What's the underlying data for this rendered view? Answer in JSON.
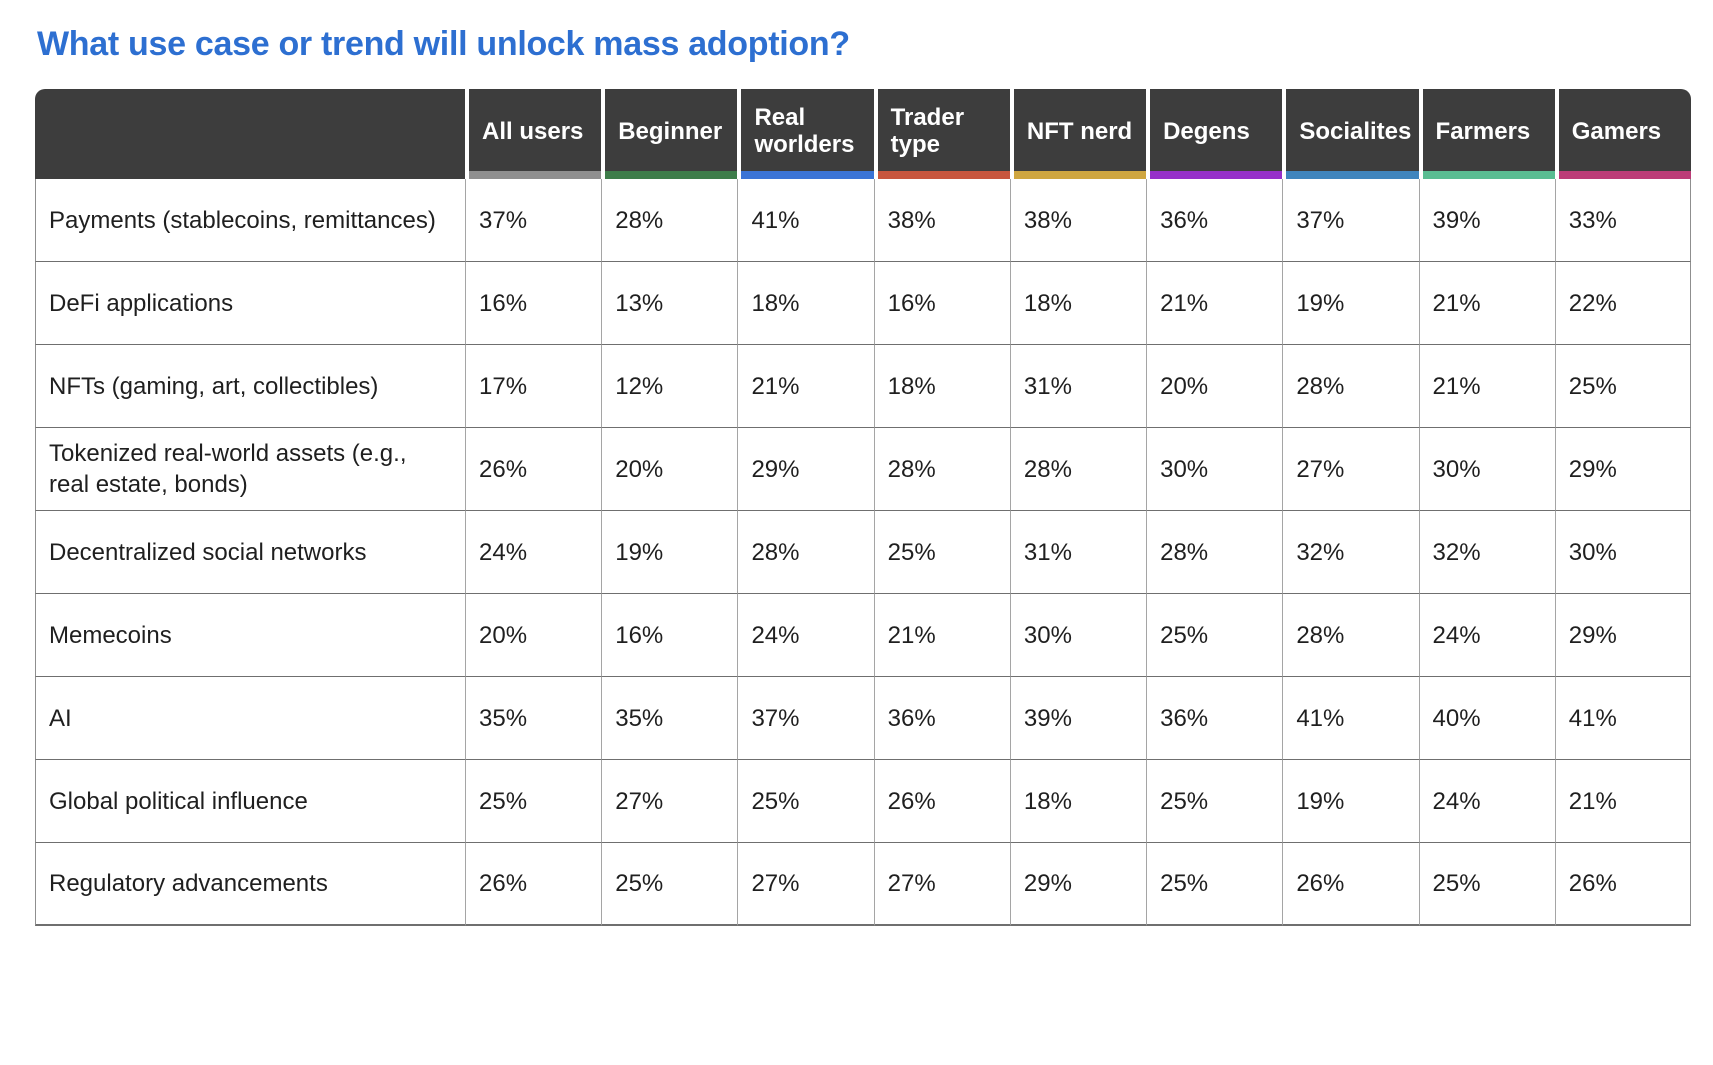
{
  "title": "What use case or trend will unlock mass adoption?",
  "theme": {
    "title_color": "#2d6fd1",
    "header_bg": "#3d3d3d",
    "header_text": "#ffffff"
  },
  "chart_data": {
    "type": "table",
    "title": "What use case or trend will unlock mass adoption?",
    "columns": [
      {
        "label": "All users",
        "color": "#8f8f8f"
      },
      {
        "label": "Beginner",
        "color": "#3e7d4a"
      },
      {
        "label": "Real worlders",
        "color": "#3b74d6"
      },
      {
        "label": "Trader type",
        "color": "#c8563e"
      },
      {
        "label": "NFT nerd",
        "color": "#cfa640"
      },
      {
        "label": "Degens",
        "color": "#9630c9"
      },
      {
        "label": "Socialites",
        "color": "#4085bd"
      },
      {
        "label": "Farmers",
        "color": "#5abd92"
      },
      {
        "label": "Gamers",
        "color": "#bc3c77"
      }
    ],
    "rows": [
      {
        "label": "Payments (stablecoins, remittances)",
        "values": [
          "37%",
          "28%",
          "41%",
          "38%",
          "38%",
          "36%",
          "37%",
          "39%",
          "33%"
        ]
      },
      {
        "label": "DeFi applications",
        "values": [
          "16%",
          "13%",
          "18%",
          "16%",
          "18%",
          "21%",
          "19%",
          "21%",
          "22%"
        ]
      },
      {
        "label": "NFTs (gaming, art, collectibles)",
        "values": [
          "17%",
          "12%",
          "21%",
          "18%",
          "31%",
          "20%",
          "28%",
          "21%",
          "25%"
        ]
      },
      {
        "label": "Tokenized real-world assets (e.g., real estate, bonds)",
        "values": [
          "26%",
          "20%",
          "29%",
          "28%",
          "28%",
          "30%",
          "27%",
          "30%",
          "29%"
        ]
      },
      {
        "label": "Decentralized social networks",
        "values": [
          "24%",
          "19%",
          "28%",
          "25%",
          "31%",
          "28%",
          "32%",
          "32%",
          "30%"
        ]
      },
      {
        "label": "Memecoins",
        "values": [
          "20%",
          "16%",
          "24%",
          "21%",
          "30%",
          "25%",
          "28%",
          "24%",
          "29%"
        ]
      },
      {
        "label": "AI",
        "values": [
          "35%",
          "35%",
          "37%",
          "36%",
          "39%",
          "36%",
          "41%",
          "40%",
          "41%"
        ]
      },
      {
        "label": "Global political influence",
        "values": [
          "25%",
          "27%",
          "25%",
          "26%",
          "18%",
          "25%",
          "19%",
          "24%",
          "21%"
        ]
      },
      {
        "label": "Regulatory advancements",
        "values": [
          "26%",
          "25%",
          "27%",
          "27%",
          "29%",
          "25%",
          "26%",
          "25%",
          "26%"
        ]
      }
    ]
  }
}
